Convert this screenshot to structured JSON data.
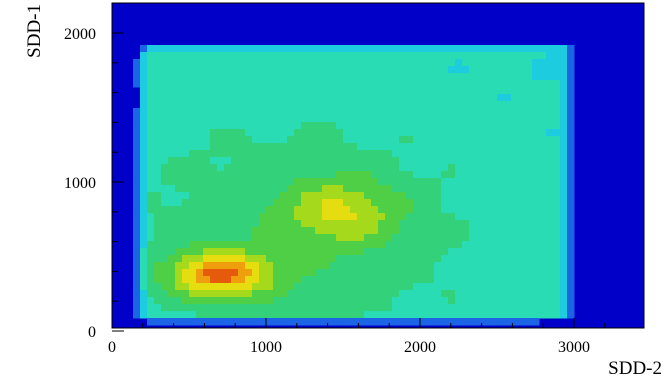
{
  "chart_data": {
    "type": "heatmap",
    "title": "",
    "xlabel": "SDD-2",
    "ylabel": "SDD-1",
    "xlim": [
      0,
      3250
    ],
    "ylim": [
      0,
      2150
    ],
    "x_ticks": [
      0,
      1000,
      2000,
      3000
    ],
    "y_ticks": [
      0,
      1000,
      2000
    ],
    "x_tick_labels": [
      "0",
      "1000",
      "2000",
      "3000"
    ],
    "y_tick_labels": [
      "0",
      "1000",
      "2000"
    ],
    "grid": false,
    "legend": "none",
    "background_color": "#0000c8",
    "colormap": [
      "#0000c8",
      "#1c64e6",
      "#1ecce0",
      "#29dcb4",
      "#33d27a",
      "#4fcf45",
      "#a5d91c",
      "#e6dd11",
      "#ef9e0d",
      "#e65a0b",
      "#c81500"
    ],
    "populated_region": {
      "x": [
        100,
        3050
      ],
      "y": [
        30,
        1980
      ]
    },
    "peaks": [
      {
        "x": 700,
        "y": 380,
        "level": 10
      },
      {
        "x": 1500,
        "y": 800,
        "level": 8
      }
    ]
  }
}
